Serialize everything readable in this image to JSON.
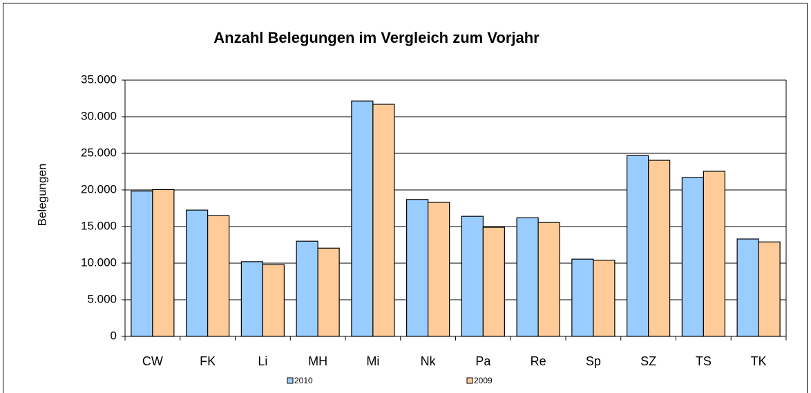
{
  "chart_data": {
    "type": "bar",
    "title": "Anzahl Belegungen im Vergleich zum Vorjahr",
    "y_label": "Belegungen",
    "categories": [
      "CW",
      "FK",
      "Li",
      "MH",
      "Mi",
      "Nk",
      "Pa",
      "Re",
      "Sp",
      "SZ",
      "TS",
      "TK"
    ],
    "series": [
      {
        "name": "2010",
        "color": "#99ccff",
        "values": [
          19850,
          17250,
          10200,
          13000,
          32150,
          18700,
          16400,
          16200,
          10550,
          24700,
          21700,
          13300
        ]
      },
      {
        "name": "2009",
        "color": "#ffcc99",
        "values": [
          20050,
          16500,
          9800,
          12050,
          31700,
          18300,
          14900,
          15550,
          10400,
          24050,
          22550,
          12900
        ]
      }
    ],
    "ylim": [
      0,
      35000
    ],
    "yticks": [
      0,
      {
        "value": 5000,
        "label": "5.000"
      },
      {
        "value": 10000,
        "label": "10.000"
      },
      {
        "value": 15000,
        "label": "15.000"
      },
      {
        "value": 20000,
        "label": "20.000"
      },
      {
        "value": 25000,
        "label": "25.000"
      },
      {
        "value": 30000,
        "label": "30.000"
      },
      {
        "value": 35000,
        "label": "35.000"
      }
    ],
    "grid": true,
    "legend": "bottom"
  }
}
